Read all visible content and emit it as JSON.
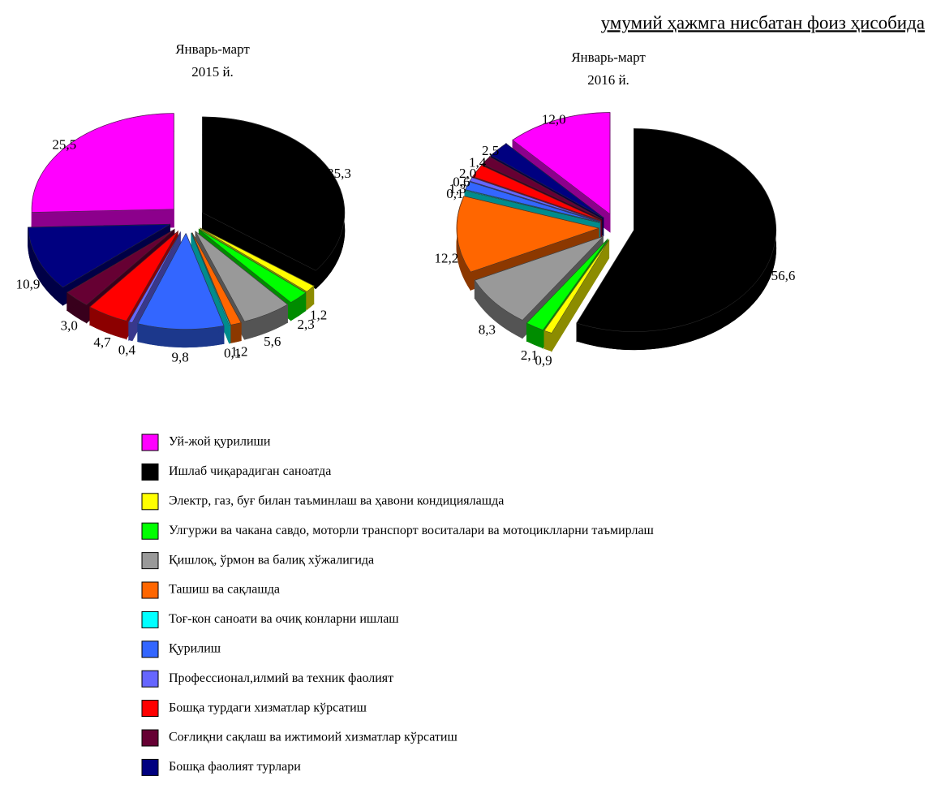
{
  "chart_data": {
    "type": "pie",
    "title": "умумий ҳажмга нисбатан фоиз ҳисобида",
    "categories": [
      "Уй-жой қурилиши",
      "Ишлаб чиқарадиган саноатда",
      "Электр, газ, буғ билан таъминлаш ва ҳавони кондициялашда",
      "Улгуржи ва чакана савдо, моторли транспорт воситалари ва мотоциклларни таъмирлаш",
      "Қишлоқ, ўрмон ва балиқ хўжалигида",
      "Ташиш ва сақлашда",
      "Тоғ-кон саноати ва очиқ конларни ишлаш",
      "Қурилиш",
      "Профессионал,илмий ва техник фаолият",
      "Бошқа турдаги хизматлар кўрсатиш",
      "Соғлиқни сақлаш ва ижтимоий хизматлар кўрсатиш",
      "Бошқа фаолият турлари"
    ],
    "colors": [
      "#ff00ff",
      "#000000",
      "#ffff00",
      "#00ff00",
      "#999999",
      "#ff6600",
      "#00ffff",
      "#3366ff",
      "#6666ff",
      "#ff0000",
      "#660033",
      "#000080"
    ],
    "series": [
      {
        "name": "Январь-март",
        "period": "2015 й.",
        "values": [
          25.5,
          35.3,
          1.2,
          2.3,
          5.6,
          1.2,
          0.1,
          9.8,
          0.4,
          4.7,
          3.0,
          10.9
        ],
        "value_labels": [
          "25,5",
          "35,3",
          "1,2",
          "2,3",
          "5,6",
          "1,2",
          "0,1",
          "9,8",
          "0,4",
          "4,7",
          "3,0",
          "10,9"
        ]
      },
      {
        "name": "Январь-март",
        "period": "2016 й.",
        "values": [
          12.0,
          56.6,
          0.9,
          2.1,
          8.3,
          12.2,
          0.1,
          1.3,
          0.6,
          2.0,
          1.4,
          2.5
        ],
        "value_labels": [
          "12,0",
          "56,6",
          "0,9",
          "2,1",
          "8,3",
          "12,2",
          "0,1",
          "1,3",
          "0,6",
          "2,0",
          "1,4",
          "2,5"
        ]
      }
    ]
  }
}
